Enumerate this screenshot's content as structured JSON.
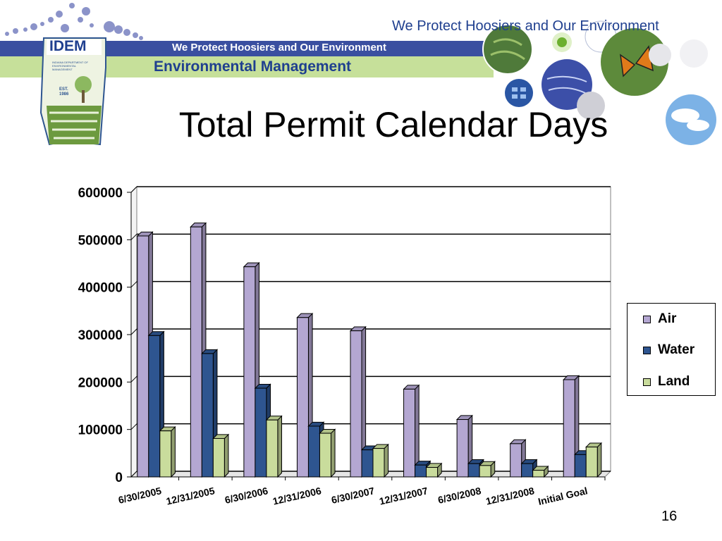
{
  "header": {
    "tagline": "We Protect Hoosiers and Our Environment",
    "logo_text": "IDEM",
    "logo_subtitle": "INDIANA DEPARTMENT OF ENVIRONMENTAL MANAGEMENT",
    "logo_est": "EST. 1986",
    "banner_tagline": "We Protect Hoosiers and Our Environment",
    "banner_title": "Environmental Management"
  },
  "slide": {
    "title": "Total Permit Calendar Days",
    "page_number": "16"
  },
  "colors": {
    "air": "#b4a7d2",
    "water": "#2e5590",
    "land": "#c9dc9c",
    "banner_blue": "#1f3f8f",
    "banner_green": "#c6e09a"
  },
  "chart_data": {
    "type": "bar",
    "title": "",
    "xlabel": "",
    "ylabel": "",
    "categories": [
      "6/30/2005",
      "12/31/2005",
      "6/30/2006",
      "12/31/2006",
      "6/30/2007",
      "12/31/2007",
      "6/30/2008",
      "12/31/2008",
      "Initial Goal"
    ],
    "series": [
      {
        "name": "Air",
        "values": [
          508000,
          527000,
          443000,
          336000,
          308000,
          185000,
          121000,
          70000,
          205000
        ]
      },
      {
        "name": "Water",
        "values": [
          298000,
          260000,
          187000,
          107000,
          57000,
          25000,
          28000,
          28000,
          47000
        ]
      },
      {
        "name": "Land",
        "values": [
          97000,
          81000,
          120000,
          92000,
          60000,
          20000,
          24000,
          14000,
          63000
        ]
      }
    ],
    "ylim": [
      0,
      600000
    ],
    "yticks": [
      "600000",
      "500000",
      "400000",
      "300000",
      "200000",
      "100000",
      "0"
    ],
    "grid": true,
    "legend_position": "right",
    "style": "3d-clustered-bar"
  }
}
